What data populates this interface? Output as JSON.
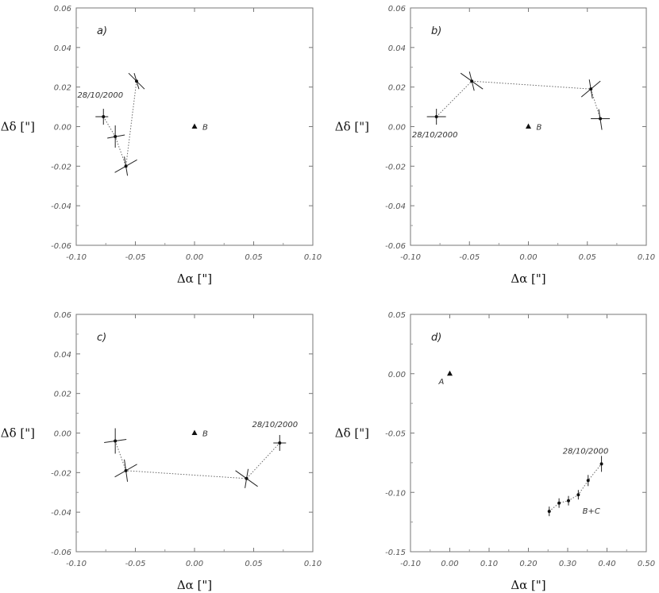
{
  "chart_data": [
    {
      "type": "scatter",
      "panel_label": "a)",
      "xlabel": "Δα [\"]",
      "ylabel": "Δδ [\"]",
      "xlim": [
        -0.1,
        0.1
      ],
      "ylim": [
        -0.06,
        0.06
      ],
      "xticks": [
        "-0.10",
        "-0.05",
        "0.00",
        "0.05",
        "0.10"
      ],
      "yticks": [
        "0.06",
        "0.04",
        "0.02",
        "0.00",
        "-0.02",
        "-0.04",
        "-0.06"
      ],
      "reference": {
        "x": 0.0,
        "y": 0.0,
        "label": "B"
      },
      "points": [
        {
          "x": -0.077,
          "y": 0.005
        },
        {
          "x": -0.067,
          "y": -0.005
        },
        {
          "x": -0.058,
          "y": -0.02
        },
        {
          "x": -0.049,
          "y": 0.023
        }
      ],
      "annotations": [
        {
          "text": "28/10/2000",
          "x": -0.077,
          "y": 0.005
        }
      ]
    },
    {
      "type": "scatter",
      "panel_label": "b)",
      "xlabel": "Δα [\"]",
      "ylabel": "Δδ [\"]",
      "xlim": [
        -0.1,
        0.1
      ],
      "ylim": [
        -0.06,
        0.06
      ],
      "xticks": [
        "-0.10",
        "-0.05",
        "0.00",
        "0.05",
        "0.10"
      ],
      "yticks": [
        "0.06",
        "0.04",
        "0.02",
        "0.00",
        "-0.02",
        "-0.04",
        "-0.06"
      ],
      "reference": {
        "x": 0.0,
        "y": 0.0,
        "label": "B"
      },
      "points": [
        {
          "x": -0.078,
          "y": 0.005
        },
        {
          "x": -0.048,
          "y": 0.023
        },
        {
          "x": 0.053,
          "y": 0.019
        },
        {
          "x": 0.061,
          "y": 0.004
        }
      ],
      "annotations": [
        {
          "text": "28/10/2000",
          "x": -0.078,
          "y": 0.005
        }
      ]
    },
    {
      "type": "scatter",
      "panel_label": "c)",
      "xlabel": "Δα [\"]",
      "ylabel": "Δδ [\"]",
      "xlim": [
        -0.1,
        0.1
      ],
      "ylim": [
        -0.06,
        0.06
      ],
      "xticks": [
        "-0.10",
        "-0.05",
        "0.00",
        "0.05",
        "0.10"
      ],
      "yticks": [
        "0.06",
        "0.04",
        "0.02",
        "0.00",
        "-0.02",
        "-0.04",
        "-0.06"
      ],
      "reference": {
        "x": 0.0,
        "y": 0.0,
        "label": "B"
      },
      "points": [
        {
          "x": -0.067,
          "y": -0.004
        },
        {
          "x": -0.058,
          "y": -0.019
        },
        {
          "x": 0.044,
          "y": -0.023
        },
        {
          "x": 0.072,
          "y": -0.005
        }
      ],
      "annotations": [
        {
          "text": "28/10/2000",
          "x": 0.072,
          "y": -0.005
        }
      ]
    },
    {
      "type": "scatter",
      "panel_label": "d)",
      "xlabel": "Δα [\"]",
      "ylabel": "Δδ [\"]",
      "xlim": [
        -0.1,
        0.5
      ],
      "ylim": [
        -0.15,
        0.05
      ],
      "xticks": [
        "-0.10",
        "0.00",
        "0.10",
        "0.20",
        "0.30",
        "0.40",
        "0.50"
      ],
      "yticks": [
        "0.05",
        "0.00",
        "-0.05",
        "-0.10",
        "-0.15"
      ],
      "reference": {
        "x": 0.0,
        "y": 0.0,
        "label": "A"
      },
      "points": [
        {
          "x": 0.253,
          "y": -0.116
        },
        {
          "x": 0.278,
          "y": -0.109
        },
        {
          "x": 0.302,
          "y": -0.107
        },
        {
          "x": 0.327,
          "y": -0.102
        },
        {
          "x": 0.352,
          "y": -0.09
        },
        {
          "x": 0.386,
          "y": -0.076
        }
      ],
      "annotations": [
        {
          "text": "28/10/2000",
          "x": 0.386,
          "y": -0.076
        },
        {
          "text": "B+C",
          "x": 0.36,
          "y": -0.118
        }
      ]
    }
  ]
}
